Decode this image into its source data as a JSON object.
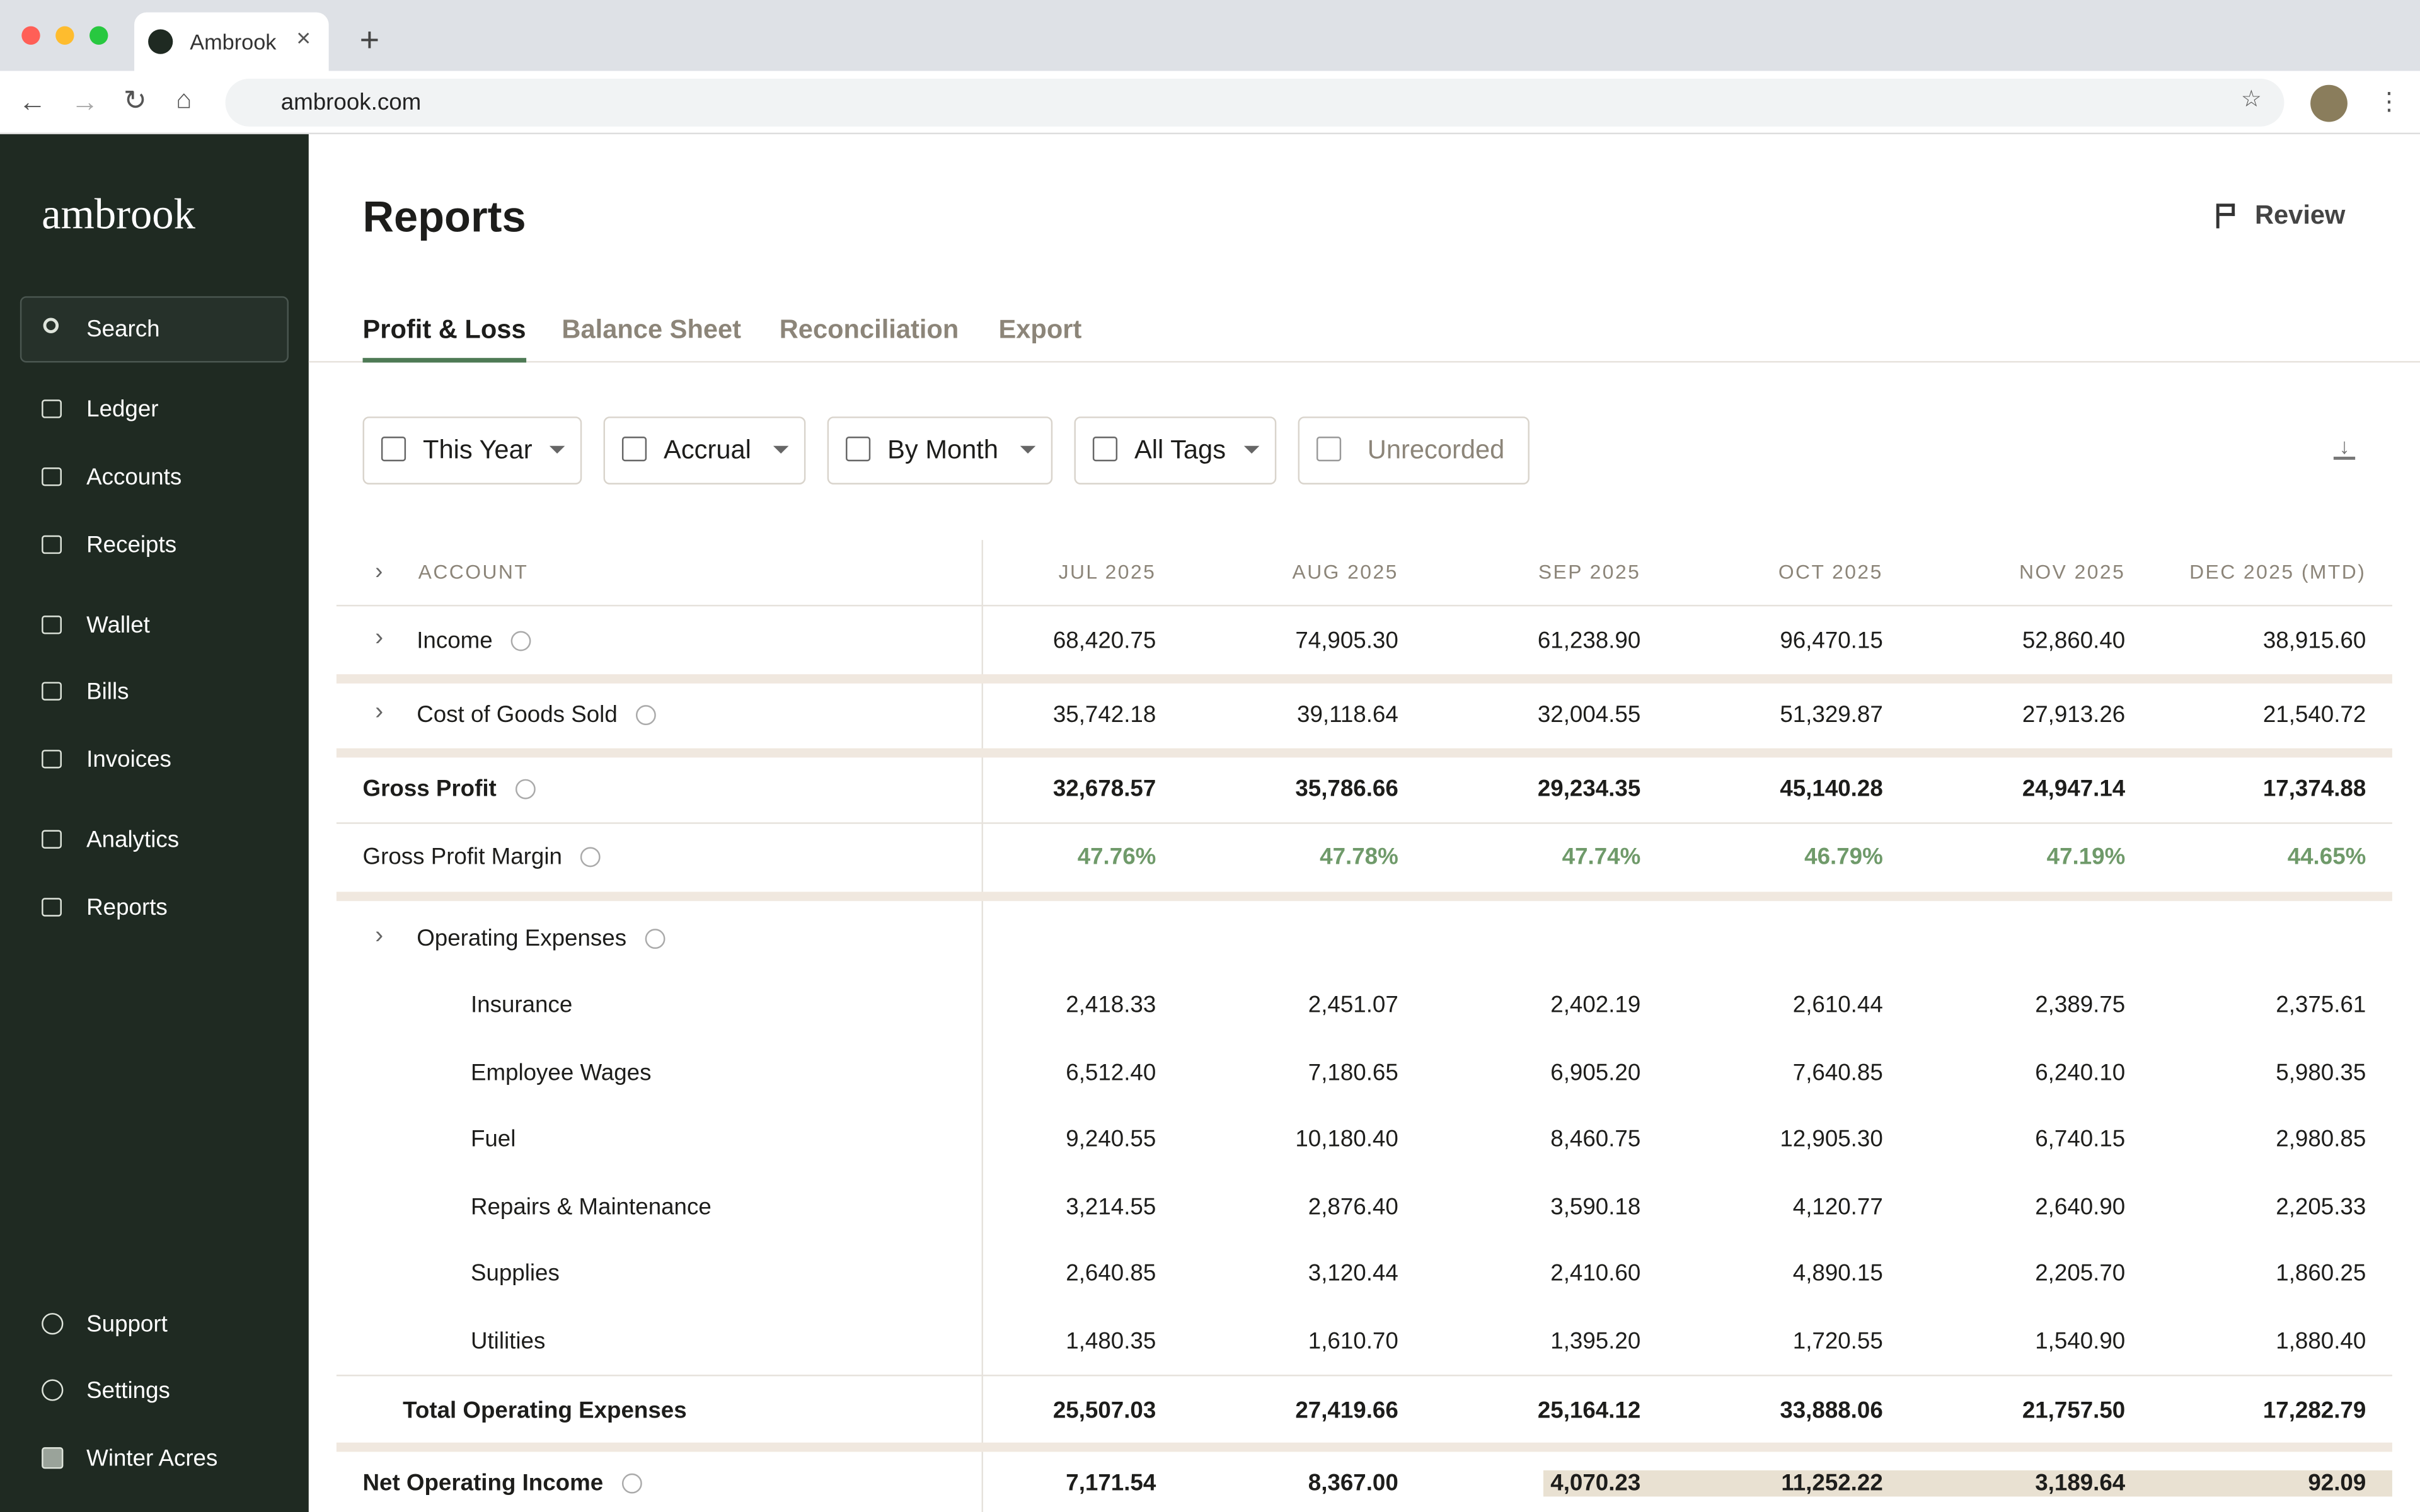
{
  "browser": {
    "tab_title": "Ambrook",
    "url": "ambrook.com"
  },
  "sidebar": {
    "logo": "ambrook",
    "search": "Search",
    "nav": [
      "Ledger",
      "Accounts",
      "Receipts",
      "Wallet",
      "Bills",
      "Invoices",
      "Analytics",
      "Reports"
    ],
    "footer": [
      "Support",
      "Settings",
      "Winter Acres"
    ]
  },
  "header": {
    "title": "Reports",
    "review": "Review"
  },
  "tabs": [
    "Profit & Loss",
    "Balance Sheet",
    "Reconciliation",
    "Export"
  ],
  "filters": [
    "This Year",
    "Accrual",
    "By Month",
    "All Tags",
    "Unrecorded"
  ],
  "table": {
    "columns": [
      "ACCOUNT",
      "JUL 2025",
      "AUG 2025",
      "SEP 2025",
      "OCT 2025",
      "NOV 2025",
      "DEC 2025 (MTD)"
    ],
    "rows": [
      {
        "label": "Income",
        "values": [
          "68,420.75",
          "74,905.30",
          "61,238.90",
          "96,470.15",
          "52,860.40",
          "38,915.60"
        ]
      },
      {
        "label": "Cost of Goods Sold",
        "values": [
          "35,742.18",
          "39,118.64",
          "32,004.55",
          "51,329.87",
          "27,913.26",
          "21,540.72"
        ]
      },
      {
        "label": "Gross Profit",
        "values": [
          "32,678.57",
          "35,786.66",
          "29,234.35",
          "45,140.28",
          "24,947.14",
          "17,374.88"
        ]
      },
      {
        "label": "Gross Profit Margin",
        "values": [
          "47.76%",
          "47.78%",
          "47.74%",
          "46.79%",
          "47.19%",
          "44.65%"
        ]
      },
      {
        "label": "Operating Expenses"
      },
      {
        "label": "Insurance",
        "values": [
          "2,418.33",
          "2,451.07",
          "2,402.19",
          "2,610.44",
          "2,389.75",
          "2,375.61"
        ]
      },
      {
        "label": "Employee Wages",
        "values": [
          "6,512.40",
          "7,180.65",
          "6,905.20",
          "7,640.85",
          "6,240.10",
          "5,980.35"
        ]
      },
      {
        "label": "Fuel",
        "values": [
          "9,240.55",
          "10,180.40",
          "8,460.75",
          "12,905.30",
          "6,740.15",
          "2,980.85"
        ]
      },
      {
        "label": "Repairs & Maintenance",
        "values": [
          "3,214.55",
          "2,876.40",
          "3,590.18",
          "4,120.77",
          "2,640.90",
          "2,205.33"
        ]
      },
      {
        "label": "Supplies",
        "values": [
          "2,640.85",
          "3,120.44",
          "2,410.60",
          "4,890.15",
          "2,205.70",
          "1,860.25"
        ]
      },
      {
        "label": "Utilities",
        "values": [
          "1,480.35",
          "1,610.70",
          "1,395.20",
          "1,720.55",
          "1,540.90",
          "1,880.40"
        ]
      },
      {
        "label": "Total Operating Expenses",
        "values": [
          "25,507.03",
          "27,419.66",
          "25,164.12",
          "33,888.06",
          "21,757.50",
          "17,282.79"
        ]
      },
      {
        "label": "Net Operating Income",
        "values": [
          "7,171.54",
          "8,367.00",
          "4,070.23",
          "11,252.22",
          "3,189.64",
          "92.09"
        ]
      }
    ]
  }
}
